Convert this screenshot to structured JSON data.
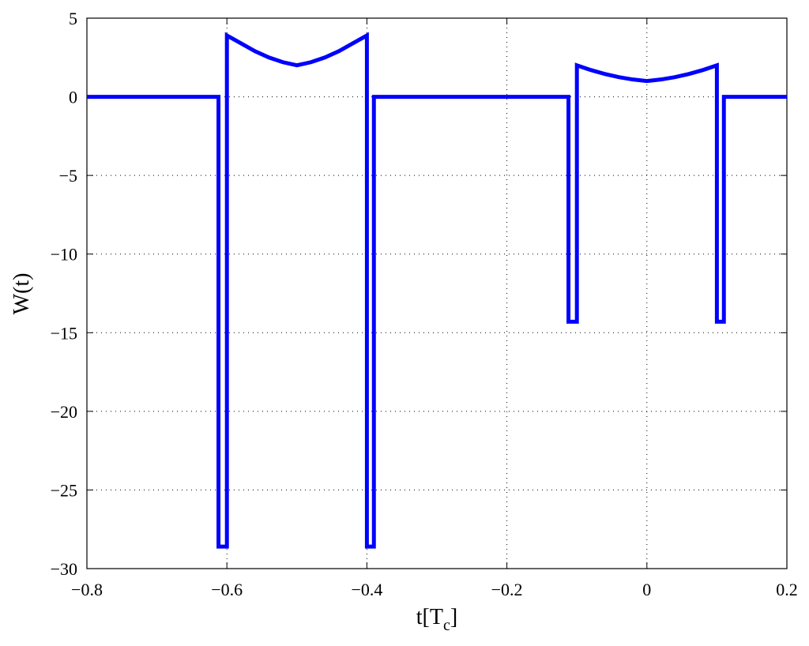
{
  "chart_data": {
    "type": "line",
    "xlabel": [
      "t[T",
      "c",
      "]"
    ],
    "ylabel": "W(t)",
    "xlim": [
      -0.8,
      0.2
    ],
    "ylim": [
      -30,
      5
    ],
    "xticks": [
      {
        "value": -0.8,
        "label": "−0.8"
      },
      {
        "value": -0.6,
        "label": "−0.6"
      },
      {
        "value": -0.4,
        "label": "−0.4"
      },
      {
        "value": -0.2,
        "label": "−0.2"
      },
      0,
      0.2
    ],
    "yticks": [
      {
        "value": -30,
        "label": "−30"
      },
      {
        "value": -25,
        "label": "−25"
      },
      {
        "value": -20,
        "label": "−20"
      },
      {
        "value": -15,
        "label": "−15"
      },
      {
        "value": -10,
        "label": "−10"
      },
      {
        "value": -5,
        "label": "−5"
      },
      0,
      5
    ],
    "grid": true,
    "series": [
      {
        "color": "#0000ff",
        "x": [
          -0.8,
          -0.612,
          -0.612,
          -0.6,
          -0.6,
          -0.58,
          -0.56,
          -0.54,
          -0.52,
          -0.5,
          -0.48,
          -0.46,
          -0.44,
          -0.42,
          -0.4,
          -0.4,
          -0.39,
          -0.39,
          -0.112,
          -0.112,
          -0.1,
          -0.1,
          -0.08,
          -0.06,
          -0.04,
          -0.02,
          0,
          0.02,
          0.04,
          0.06,
          0.08,
          0.1,
          0.1,
          0.11,
          0.11,
          0.2
        ],
        "values": [
          0,
          0,
          -28.6,
          -28.6,
          3.9,
          3.4,
          2.9,
          2.5,
          2.2,
          2.0,
          2.2,
          2.5,
          2.9,
          3.4,
          3.9,
          -28.6,
          -28.6,
          0,
          0,
          -14.3,
          -14.3,
          2.0,
          1.7,
          1.45,
          1.25,
          1.1,
          1.0,
          1.1,
          1.25,
          1.45,
          1.7,
          2.0,
          -14.3,
          -14.3,
          0,
          0
        ]
      }
    ]
  }
}
